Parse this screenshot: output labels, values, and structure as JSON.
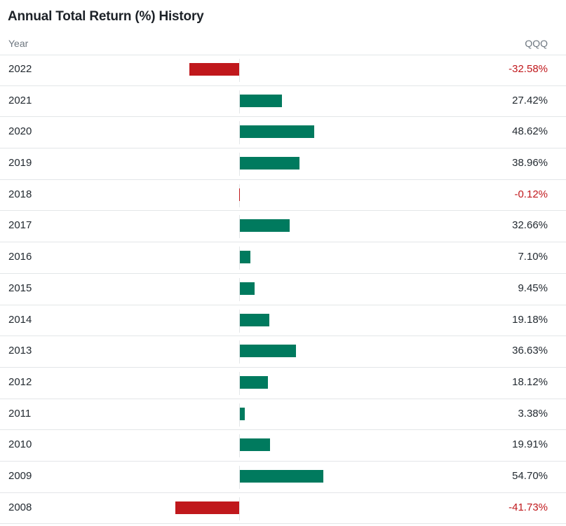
{
  "title": "Annual Total Return (%) History",
  "header": {
    "year_label": "Year",
    "symbol_label": "QQQ"
  },
  "colors": {
    "positive": "#007a5e",
    "negative": "#c0181c"
  },
  "chart_data": {
    "type": "bar",
    "orientation": "horizontal",
    "title": "Annual Total Return (%) History",
    "categories": [
      "2022",
      "2021",
      "2020",
      "2019",
      "2018",
      "2017",
      "2016",
      "2015",
      "2014",
      "2013",
      "2012",
      "2011",
      "2010",
      "2009",
      "2008"
    ],
    "series": [
      {
        "name": "QQQ",
        "values": [
          -32.58,
          27.42,
          48.62,
          38.96,
          -0.12,
          32.66,
          7.1,
          9.45,
          19.18,
          36.63,
          18.12,
          3.38,
          19.91,
          54.7,
          -41.73
        ],
        "labels": [
          "-32.58%",
          "27.42%",
          "48.62%",
          "38.96%",
          "-0.12%",
          "32.66%",
          "7.10%",
          "9.45%",
          "19.18%",
          "36.63%",
          "18.12%",
          "3.38%",
          "19.91%",
          "54.70%",
          "-41.73%"
        ]
      }
    ]
  }
}
